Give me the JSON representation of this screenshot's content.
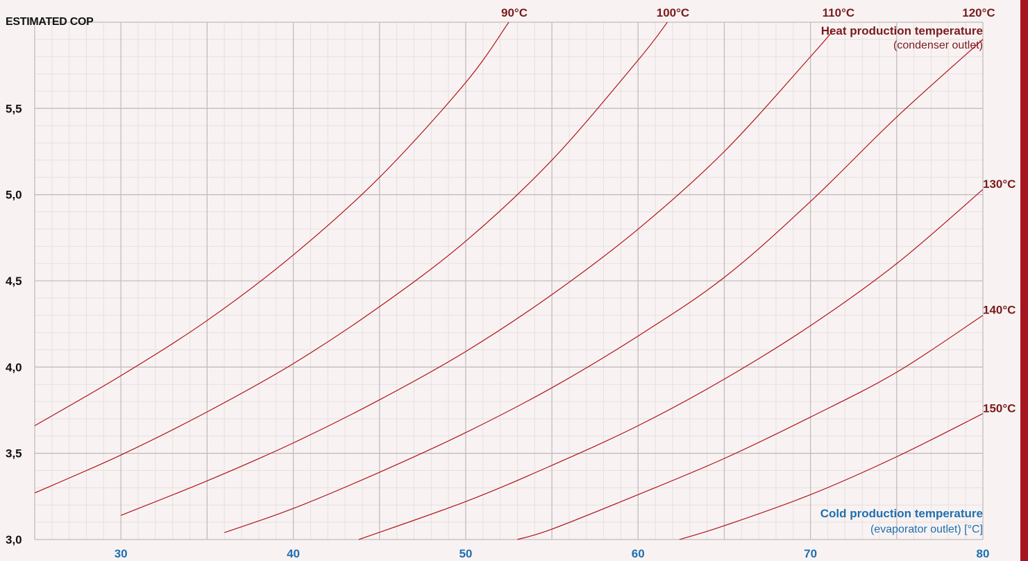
{
  "chart_data": {
    "type": "line",
    "ylabel": "ESTIMATED COP",
    "xlim": [
      25,
      80
    ],
    "ylim": [
      3.0,
      6.0
    ],
    "x_ticks": [
      "30",
      "40",
      "50",
      "60",
      "70",
      "80"
    ],
    "y_ticks": [
      "3,0",
      "3,5",
      "4,0",
      "4,5",
      "5,0",
      "5,5"
    ],
    "grid": true,
    "heat_axis_title": "Heat production temperature",
    "heat_axis_subtitle": "(condenser outlet)",
    "cold_axis_title": "Cold production temperature",
    "cold_axis_subtitle": "(evaporator outlet) [°C]",
    "line_color": "#b0121c",
    "series": [
      {
        "name": "90°C",
        "x": [
          25,
          30,
          35,
          40,
          45,
          50,
          52.5
        ],
        "y": [
          3.66,
          3.95,
          4.27,
          4.65,
          5.1,
          5.65,
          6.0
        ]
      },
      {
        "name": "100°C",
        "x": [
          25,
          30,
          35,
          40,
          45,
          50,
          55,
          60,
          61.7
        ],
        "y": [
          3.27,
          3.49,
          3.74,
          4.02,
          4.35,
          4.73,
          5.2,
          5.78,
          6.0
        ]
      },
      {
        "name": "110°C",
        "x": [
          30,
          35,
          40,
          45,
          50,
          55,
          60,
          65,
          70,
          71.3
        ],
        "y": [
          3.14,
          3.34,
          3.56,
          3.81,
          4.09,
          4.42,
          4.8,
          5.25,
          5.8,
          5.95
        ]
      },
      {
        "name": "120°C",
        "x": [
          36,
          40,
          45,
          50,
          55,
          60,
          65,
          70,
          75,
          80
        ],
        "y": [
          3.04,
          3.18,
          3.39,
          3.62,
          3.88,
          4.18,
          4.52,
          4.96,
          5.45,
          5.9
        ]
      },
      {
        "name": "130°C",
        "x": [
          43.8,
          50,
          55,
          60,
          65,
          70,
          75,
          80
        ],
        "y": [
          3.0,
          3.22,
          3.43,
          3.66,
          3.93,
          4.24,
          4.6,
          5.03
        ]
      },
      {
        "name": "140°C",
        "x": [
          53,
          55,
          60,
          65,
          70,
          75,
          80
        ],
        "y": [
          3.0,
          3.06,
          3.26,
          3.47,
          3.71,
          3.97,
          4.3
        ]
      },
      {
        "name": "150°C",
        "x": [
          62.4,
          65,
          70,
          75,
          80
        ],
        "y": [
          3.0,
          3.08,
          3.26,
          3.48,
          3.73
        ]
      }
    ]
  }
}
